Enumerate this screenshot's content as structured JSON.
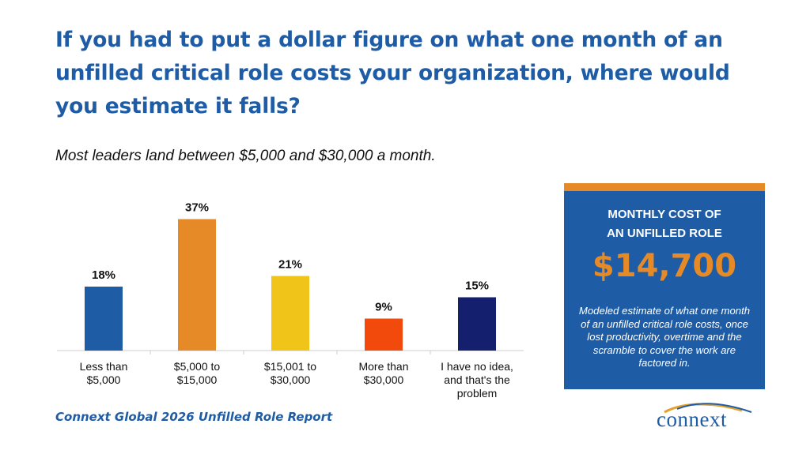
{
  "title": "If you had to put a dollar figure on what one month of an unfilled critical role costs your organization, where would you estimate it falls?",
  "subtitle": "Most leaders land between $5,000 and $30,000 a month.",
  "chart_data": {
    "type": "bar",
    "categories": [
      [
        "Less than",
        "$5,000"
      ],
      [
        "$5,000 to",
        "$15,000"
      ],
      [
        "$15,001 to",
        "$30,000"
      ],
      [
        "More than",
        "$30,000"
      ],
      [
        "I have no idea,",
        "and that's the",
        "problem"
      ]
    ],
    "values": [
      18,
      37,
      21,
      9,
      15
    ],
    "value_labels": [
      "18%",
      "37%",
      "21%",
      "9%",
      "15%"
    ],
    "colors": [
      "#1f5ca6",
      "#e58a26",
      "#f0c419",
      "#f24a0d",
      "#141f6e"
    ],
    "ylim": [
      0,
      40
    ],
    "grid": false,
    "legend": "none"
  },
  "callout": {
    "heading": "MONTHLY COST OF\nAN UNFILLED ROLE",
    "value": "$14,700",
    "note": "Modeled estimate of what one month of an unfilled critical role costs, once lost productivity, overtime and the scramble to cover the work are factored in."
  },
  "footer": "Connext Global 2026 Unfilled Role Report",
  "logo": {
    "text": "connext",
    "icon": "swoosh-logo-icon",
    "accent": "#e5a12b"
  }
}
